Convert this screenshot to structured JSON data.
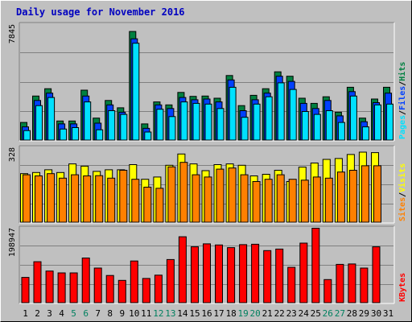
{
  "chart_data": {
    "type": "bar",
    "title": "Daily usage for November 2016",
    "categories": [
      "1",
      "2",
      "3",
      "4",
      "5",
      "6",
      "7",
      "8",
      "9",
      "10",
      "11",
      "12",
      "13",
      "14",
      "15",
      "16",
      "17",
      "18",
      "19",
      "20",
      "21",
      "22",
      "23",
      "24",
      "25",
      "26",
      "27",
      "28",
      "29",
      "30",
      "31"
    ],
    "weekend_days": [
      "5",
      "6",
      "12",
      "13",
      "19",
      "20",
      "26",
      "27"
    ],
    "panels": [
      {
        "id": "requests",
        "ymax_label": "7845",
        "ylim": [
          0,
          7845
        ],
        "legend": [
          "Pages",
          "/",
          "Files",
          "/",
          "Hits"
        ],
        "legend_colors": [
          "#00e0ff",
          "#000000",
          "#0040ff",
          "#000000",
          "#008040"
        ],
        "series": [
          {
            "name": "Hits",
            "color": "#008040",
            "values": [
              1200,
              3000,
              3500,
              1300,
              1300,
              3400,
              1500,
              2700,
              2200,
              7400,
              1100,
              2600,
              2400,
              3250,
              2980,
              3000,
              2850,
              4400,
              2350,
              3050,
              3500,
              4650,
              4350,
              2850,
              2500,
              2950,
              1900,
              3600,
              1500,
              2800,
              3600
            ]
          },
          {
            "name": "Files",
            "color": "#0040ff",
            "values": [
              900,
              2700,
              3200,
              1100,
              1100,
              3000,
              1150,
              2400,
              1900,
              6900,
              800,
              2400,
              2150,
              2900,
              2750,
              2800,
              2600,
              4100,
              2000,
              2750,
              3200,
              4350,
              4000,
              2500,
              2150,
              2700,
              1650,
              3300,
              1250,
              2550,
              3200
            ]
          },
          {
            "name": "Pages",
            "color": "#00e0ff",
            "values": [
              650,
              2350,
              2900,
              750,
              850,
              2600,
              700,
              2000,
              1750,
              6600,
              550,
              2100,
              1600,
              2600,
              2500,
              2450,
              2150,
              3600,
              1550,
              2450,
              2950,
              3900,
              3450,
              1950,
              1750,
              2000,
              1200,
              3000,
              900,
              2400,
              2450
            ]
          }
        ]
      },
      {
        "id": "visitors",
        "ymax_label": "328",
        "ylim": [
          0,
          328
        ],
        "legend": [
          "Sites",
          "/",
          "Visits"
        ],
        "legend_colors": [
          "#ff8000",
          "#000000",
          "#ffff00"
        ],
        "series": [
          {
            "name": "Visits",
            "color": "#ffff00",
            "values": [
              215,
              220,
              232,
              220,
              258,
              248,
              225,
              232,
              232,
              255,
              190,
              200,
              252,
              302,
              258,
              228,
              255,
              258,
              252,
              205,
              212,
              230,
              180,
              244,
              262,
              278,
              282,
              300,
              310,
              308,
              0
            ]
          },
          {
            "name": "Sites",
            "color": "#ff8000",
            "values": [
              210,
              205,
              215,
              195,
              210,
              205,
              206,
              195,
              230,
              190,
              155,
              150,
              245,
              265,
              210,
              200,
              235,
              240,
              210,
              180,
              190,
              210,
              190,
              186,
              200,
              195,
              222,
              230,
              250,
              250,
              0
            ]
          }
        ]
      },
      {
        "id": "kbytes",
        "ymax_label": "198947",
        "ylim": [
          0,
          198947
        ],
        "legend": [
          "KBytes"
        ],
        "legend_colors": [
          "#ff0000"
        ],
        "series": [
          {
            "name": "KBytes",
            "color": "#ff0000",
            "values": [
              68000,
              110000,
              85000,
              80000,
              80000,
              120000,
              93000,
              73000,
              60000,
              112000,
              65000,
              74000,
              116000,
              177000,
              150000,
              158000,
              155000,
              148000,
              156000,
              157000,
              140000,
              144000,
              95000,
              160000,
              200000,
              62000,
              103000,
              104000,
              93000,
              150000,
              0
            ]
          }
        ]
      }
    ]
  }
}
